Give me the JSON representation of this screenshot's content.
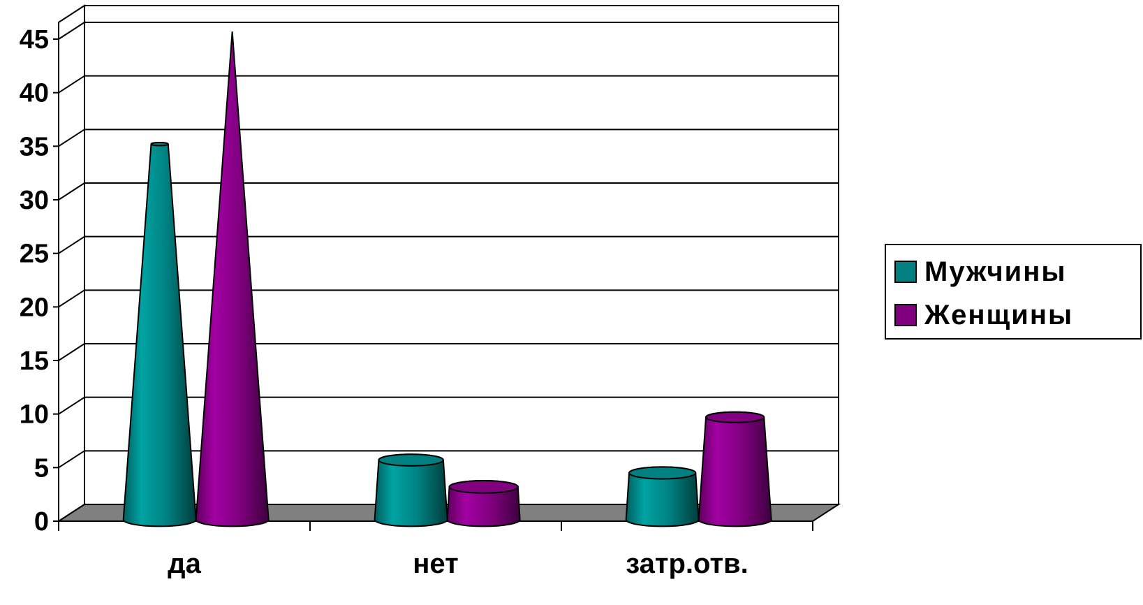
{
  "chart_data": {
    "type": "bar",
    "style": "3d-cone",
    "categories": [
      "да",
      "нет",
      "затр.отв."
    ],
    "series": [
      {
        "name": "Мужчины",
        "values": [
          34.5,
          5,
          3.8
        ],
        "color": "#008080"
      },
      {
        "name": "Женщины",
        "values": [
          45,
          2.5,
          9
        ],
        "color": "#800080"
      }
    ],
    "yticks": [
      "0",
      "5",
      "10",
      "15",
      "20",
      "25",
      "30",
      "35",
      "40",
      "45"
    ],
    "ylim": [
      0,
      45
    ],
    "grid": true,
    "legend": "right",
    "floor_color": "#808080"
  }
}
